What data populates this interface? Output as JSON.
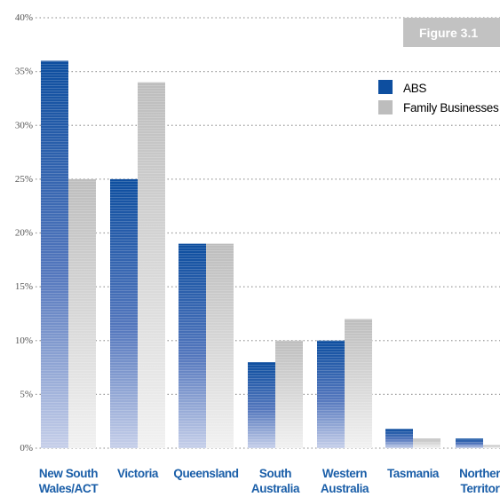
{
  "figure_label": "Figure 3.1",
  "chart_data": {
    "type": "bar",
    "categories": [
      [
        "New South",
        "Wales/ACT"
      ],
      [
        "Victoria"
      ],
      [
        "Queensland"
      ],
      [
        "South",
        "Australia"
      ],
      [
        "Western",
        "Australia"
      ],
      [
        "Tasmania"
      ],
      [
        "Northern",
        "Territory"
      ]
    ],
    "series": [
      {
        "name": "ABS",
        "values": [
          36,
          25,
          19,
          8,
          10,
          1.8,
          0.9
        ],
        "color": "#0d4e9f"
      },
      {
        "name": "Family Businesses",
        "values": [
          25,
          34,
          19,
          10,
          12,
          0.9,
          0.3
        ],
        "color": "#bdbdbd"
      }
    ],
    "ylim": [
      0,
      40
    ],
    "yticks": [
      "0%",
      "5%",
      "10%",
      "15%",
      "20%",
      "25%",
      "30%",
      "35%",
      "40%"
    ],
    "grid": true,
    "legend_position": "top-right"
  }
}
